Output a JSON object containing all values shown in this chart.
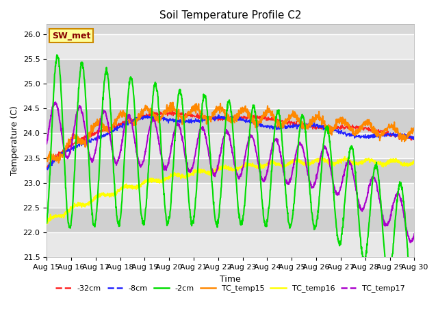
{
  "title": "Soil Temperature Profile C2",
  "xlabel": "Time",
  "ylabel": "Temperature (C)",
  "ylim": [
    21.5,
    26.2
  ],
  "background_color": "#ffffff",
  "plot_bg_color": "#d8d8d8",
  "band_colors": [
    "#e8e8e8",
    "#d0d0d0"
  ],
  "grid_color": "#ffffff",
  "annotation_text": "SW_met",
  "annotation_bg": "#ffff99",
  "annotation_border": "#cc8800",
  "annotation_text_color": "#880000",
  "legend_labels": [
    "-32cm",
    "-8cm",
    "-2cm",
    "TC_temp15",
    "TC_temp16",
    "TC_temp17"
  ],
  "line_colors": [
    "#ff2222",
    "#2222ff",
    "#00dd00",
    "#ff8800",
    "#ffff00",
    "#aa00cc"
  ],
  "line_widths": [
    1.0,
    1.0,
    1.5,
    1.5,
    1.5,
    1.5
  ],
  "tick_labels": [
    "Aug 15",
    "Aug 16",
    "Aug 17",
    "Aug 18",
    "Aug 19",
    "Aug 20",
    "Aug 21",
    "Aug 22",
    "Aug 23",
    "Aug 24",
    "Aug 25",
    "Aug 26",
    "Aug 27",
    "Aug 28",
    "Aug 29",
    "Aug 30"
  ]
}
